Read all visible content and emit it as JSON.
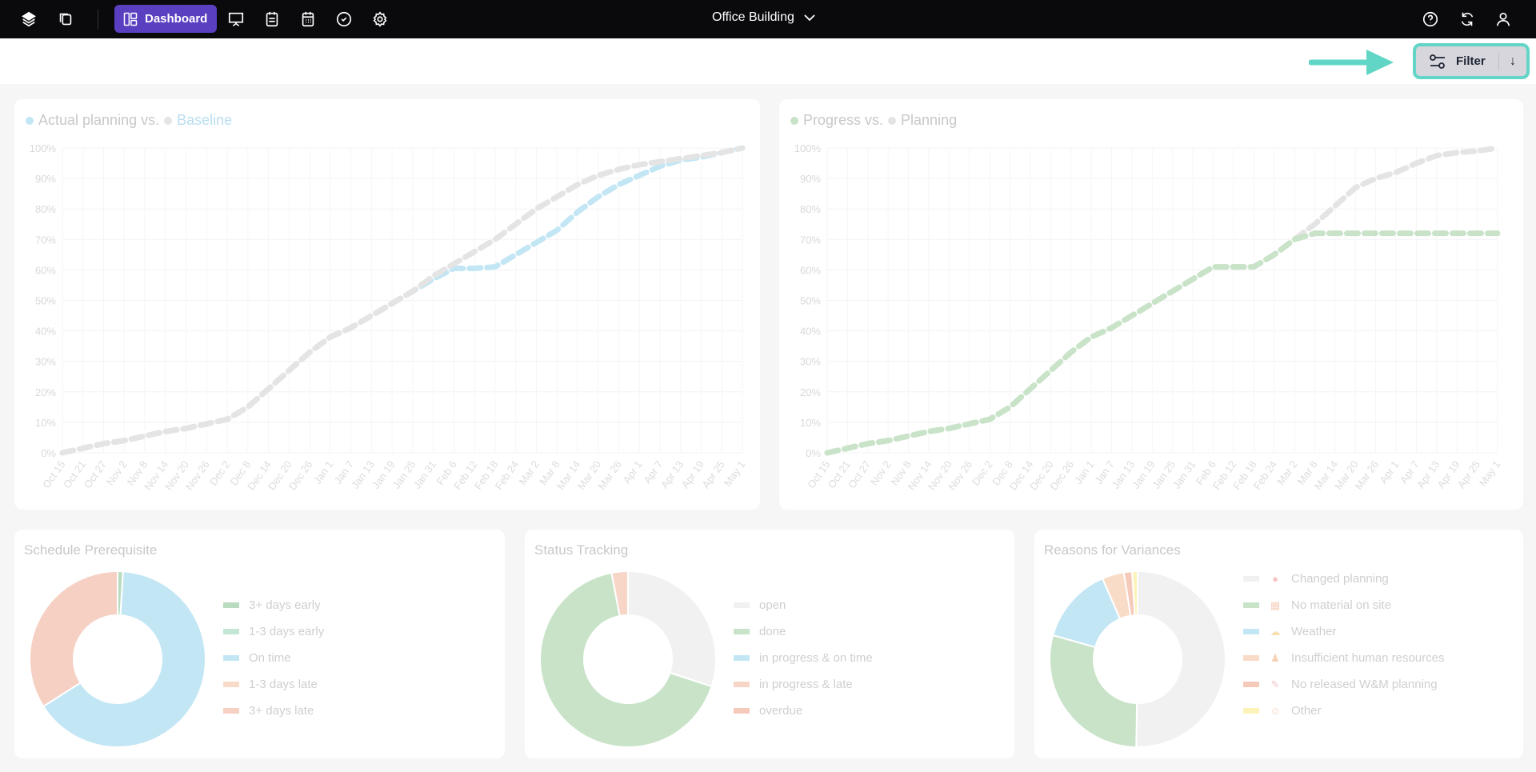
{
  "topbar": {
    "dashboard_label": "Dashboard",
    "project": "Office Building",
    "icons": [
      "layers-icon",
      "copy-icon",
      "dashboard-icon",
      "presentation-icon",
      "calendar-list-icon",
      "calendar-icon",
      "check-circle-icon",
      "gear-icon",
      "help-icon",
      "refresh-icon",
      "user-icon"
    ]
  },
  "filterbar": {
    "filter_label": "Filter",
    "sort_icon": "arrow-down-icon",
    "highlight_color": "#62d6c6"
  },
  "chart_data": [
    {
      "type": "line",
      "title_parts": [
        "Actual planning vs.",
        "Baseline"
      ],
      "ylim": [
        0,
        100
      ],
      "yticks": [
        "0%",
        "10%",
        "20%",
        "30%",
        "40%",
        "50%",
        "60%",
        "70%",
        "80%",
        "90%",
        "100%"
      ],
      "categories": [
        "Oct 15",
        "Oct 21",
        "Oct 27",
        "Nov 2",
        "Nov 8",
        "Nov 14",
        "Nov 20",
        "Nov 26",
        "Dec 2",
        "Dec 8",
        "Dec 14",
        "Dec 20",
        "Dec 26",
        "Jan 1",
        "Jan 7",
        "Jan 13",
        "Jan 19",
        "Jan 25",
        "Jan 31",
        "Feb 6",
        "Feb 12",
        "Feb 18",
        "Feb 24",
        "Mar 2",
        "Mar 8",
        "Mar 14",
        "Mar 20",
        "Mar 26",
        "Apr 1",
        "Apr 7",
        "Apr 13",
        "Apr 19",
        "Apr 25",
        "May 1"
      ],
      "grid": true,
      "series": [
        {
          "name": "Actual planning",
          "color": "#c3e6f5",
          "values": [
            0,
            1.5,
            3,
            4,
            5.5,
            7,
            8,
            9.5,
            11,
            15,
            21,
            27,
            33,
            38,
            41,
            45,
            49,
            53,
            57,
            60.5,
            60.5,
            61,
            65,
            69,
            73,
            79,
            84,
            88,
            91,
            94,
            96,
            97,
            98.5,
            100
          ]
        },
        {
          "name": "Baseline",
          "color": "#e4e4e4",
          "values": [
            0,
            1.5,
            3,
            4,
            5.5,
            7,
            8,
            9.5,
            11,
            15,
            21,
            27,
            33,
            38,
            41,
            45,
            49,
            53,
            58,
            62,
            66,
            70,
            75,
            80,
            84,
            88,
            91,
            93,
            94.5,
            95.5,
            96.5,
            97.5,
            98.5,
            100
          ]
        }
      ]
    },
    {
      "type": "line",
      "title_parts": [
        "Progress vs.",
        "Planning"
      ],
      "ylim": [
        0,
        100
      ],
      "yticks": [
        "0%",
        "10%",
        "20%",
        "30%",
        "40%",
        "50%",
        "60%",
        "70%",
        "80%",
        "90%",
        "100%"
      ],
      "categories": [
        "Oct 15",
        "Oct 21",
        "Oct 27",
        "Nov 2",
        "Nov 8",
        "Nov 14",
        "Nov 20",
        "Nov 26",
        "Dec 2",
        "Dec 8",
        "Dec 14",
        "Dec 20",
        "Dec 26",
        "Jan 1",
        "Jan 7",
        "Jan 13",
        "Jan 19",
        "Jan 25",
        "Jan 31",
        "Feb 6",
        "Feb 12",
        "Feb 18",
        "Feb 24",
        "Mar 2",
        "Mar 8",
        "Mar 14",
        "Mar 20",
        "Mar 26",
        "Apr 1",
        "Apr 7",
        "Apr 13",
        "Apr 19",
        "Apr 25",
        "May 1"
      ],
      "grid": true,
      "series": [
        {
          "name": "Planning",
          "color": "#e4e4e4",
          "values": [
            0,
            1.5,
            3,
            4,
            5.5,
            7,
            8,
            9.5,
            11,
            15,
            21,
            27,
            33,
            38,
            41,
            45,
            49,
            53,
            57,
            61,
            61,
            61,
            65,
            70,
            75,
            81,
            87,
            90,
            92,
            95,
            97.5,
            98.5,
            99,
            100
          ]
        },
        {
          "name": "Progress",
          "color": "#c8e3c8",
          "values": [
            0,
            1.5,
            3,
            4,
            5.5,
            7,
            8,
            9.5,
            11,
            15,
            21,
            27,
            33,
            38,
            41,
            45,
            49,
            53,
            57,
            61,
            61,
            61,
            65,
            70,
            72,
            72,
            72,
            72,
            72,
            72,
            72,
            72,
            72,
            72
          ]
        }
      ]
    },
    {
      "type": "pie",
      "title": "Schedule Prerequisite",
      "slices": [
        {
          "label": "3+ days early",
          "value": 1,
          "color": "#b9dcc0"
        },
        {
          "label": "1-3 days early",
          "value": 0,
          "color": "#c4e6d6"
        },
        {
          "label": "On time",
          "value": 65,
          "color": "#c3e6f5"
        },
        {
          "label": "1-3 days late",
          "value": 0,
          "color": "#f8dcc8"
        },
        {
          "label": "3+ days late",
          "value": 34,
          "color": "#f5d0c3"
        }
      ]
    },
    {
      "type": "pie",
      "title": "Status Tracking",
      "slices": [
        {
          "label": "open",
          "value": 30,
          "color": "#f0f1f0"
        },
        {
          "label": "done",
          "value": 67,
          "color": "#c8e3c8"
        },
        {
          "label": "in progress & on time",
          "value": 0,
          "color": "#c3e6f5"
        },
        {
          "label": "in progress & late",
          "value": 3,
          "color": "#f7d6c8"
        },
        {
          "label": "overdue",
          "value": 0,
          "color": "#f5cabb"
        }
      ]
    },
    {
      "type": "pie",
      "title": "Reasons for Variances",
      "slices": [
        {
          "label": "Changed planning",
          "value": 50,
          "color": "#f0f1f0",
          "icon": "red-circle-icon"
        },
        {
          "label": "No material on site",
          "value": 29,
          "color": "#c8e3c8",
          "icon": "brick-wall-icon"
        },
        {
          "label": "Weather",
          "value": 14,
          "color": "#c3e6f5",
          "icon": "sun-cloud-icon"
        },
        {
          "label": "Insufficient human resources",
          "value": 4,
          "color": "#f8dcc8",
          "icon": "worker-icon"
        },
        {
          "label": "No released W&M planning",
          "value": 1.5,
          "color": "#f5cabb",
          "icon": "document-pen-icon"
        },
        {
          "label": "Other",
          "value": 1,
          "color": "#fdf3b8",
          "icon": "person-icon"
        }
      ]
    }
  ]
}
